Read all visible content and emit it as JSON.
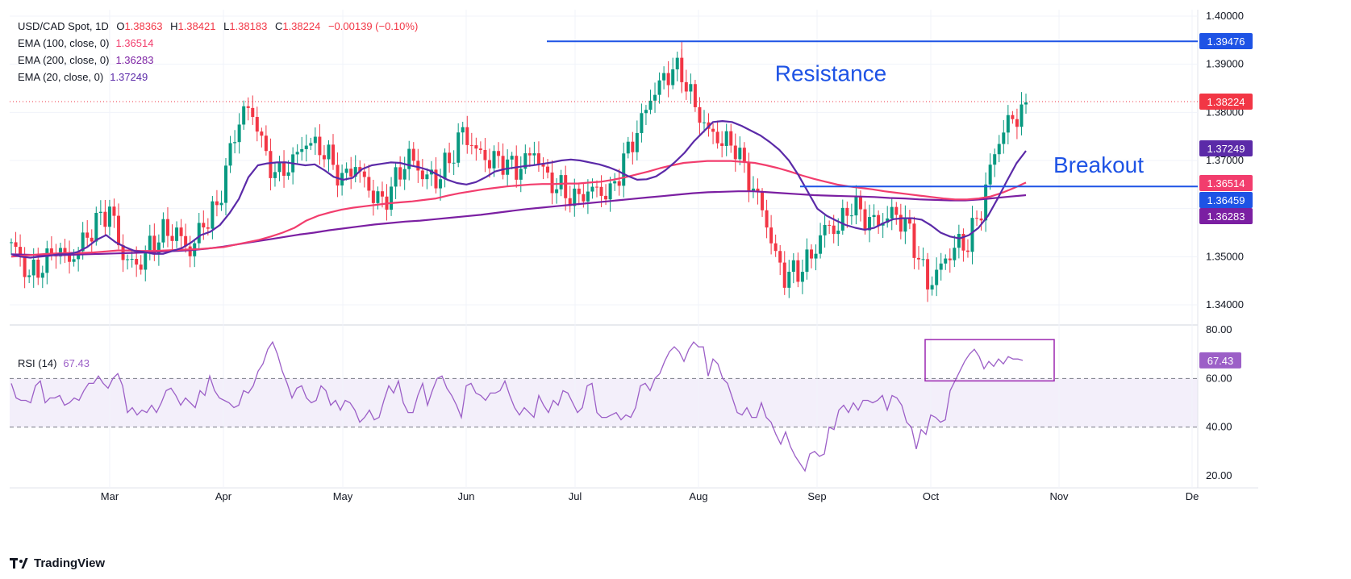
{
  "header": {
    "symbol": "USD/CAD Spot, 1D",
    "open_label": "O",
    "open": "1.38363",
    "high_label": "H",
    "high": "1.38421",
    "low_label": "L",
    "low": "1.38183",
    "close_label": "C",
    "close": "1.38224",
    "change": "−0.00139 (−0.10%)"
  },
  "indicators": [
    {
      "label": "EMA (100, close, 0)",
      "value": "1.36514",
      "color": "#f23d6d"
    },
    {
      "label": "EMA (200, close, 0)",
      "value": "1.36283",
      "color": "#7b1fa2"
    },
    {
      "label": "EMA (20, close, 0)",
      "value": "1.37249",
      "color": "#5b2aa8"
    }
  ],
  "rsi": {
    "label": "RSI (14)",
    "value": "67.43",
    "color": "#9c5fc7"
  },
  "annotations": {
    "resistance": "Resistance",
    "breakout": "Breakout"
  },
  "footer": {
    "brand": "TradingView"
  },
  "colors": {
    "up": "#089981",
    "down": "#f23645",
    "level": "#1e53e5",
    "rsi_band": "#f3effa"
  },
  "chart_data": [
    {
      "type": "candlestick",
      "title": "USD/CAD Spot, 1D",
      "x_ticks": [
        "Mar",
        "Apr",
        "May",
        "Jun",
        "Jul",
        "Aug",
        "Sep",
        "Oct",
        "Nov",
        "De"
      ],
      "y_ticks": [
        "1.40000",
        "1.39000",
        "1.38000",
        "1.37000",
        "1.36000",
        "1.35000",
        "1.34000"
      ],
      "ylim": [
        1.3367,
        1.4002
      ],
      "price_tags": [
        {
          "value": 1.39476,
          "label": "1.39476",
          "color": "#1e53e5"
        },
        {
          "value": 1.38224,
          "label": "1.38224",
          "color": "#f23645"
        },
        {
          "value": 1.37249,
          "label": "1.37249",
          "color": "#5b2aa8"
        },
        {
          "value": 1.36514,
          "label": "1.36514",
          "color": "#f23d6d"
        },
        {
          "value": 1.36459,
          "label": "1.36459",
          "color": "#1e53e5"
        },
        {
          "value": 1.36283,
          "label": "1.36283",
          "color": "#7b1fa2"
        }
      ],
      "levels": [
        {
          "name": "Resistance",
          "value": 1.39476,
          "from_bar": 114
        },
        {
          "name": "Breakout",
          "value": 1.36459,
          "from_bar": 168
        }
      ],
      "ema20": [
        1.3505,
        1.35,
        1.3498,
        1.35,
        1.3502,
        1.3505,
        1.3505,
        1.351,
        1.352,
        1.3535,
        1.3545,
        1.353,
        1.352,
        1.3512,
        1.351,
        1.3506,
        1.3506,
        1.3512,
        1.3518,
        1.353,
        1.3545,
        1.3552,
        1.3566,
        1.359,
        1.362,
        1.3665,
        1.369,
        1.3694,
        1.3696,
        1.3696,
        1.3693,
        1.369,
        1.3692,
        1.368,
        1.3666,
        1.366,
        1.3664,
        1.3682,
        1.369,
        1.3693,
        1.3696,
        1.3695,
        1.369,
        1.3686,
        1.368,
        1.367,
        1.366,
        1.3653,
        1.365,
        1.3655,
        1.3665,
        1.3677,
        1.3682,
        1.3685,
        1.3688,
        1.369,
        1.3693,
        1.3696,
        1.37,
        1.3702,
        1.37,
        1.3696,
        1.3692,
        1.3686,
        1.3678,
        1.3668,
        1.366,
        1.3661,
        1.3667,
        1.368,
        1.3697,
        1.3716,
        1.374,
        1.376,
        1.378,
        1.3782,
        1.378,
        1.3772,
        1.3762,
        1.3752,
        1.3738,
        1.3722,
        1.37,
        1.367,
        1.3635,
        1.36,
        1.3585,
        1.3575,
        1.3566,
        1.356,
        1.3556,
        1.356,
        1.357,
        1.3578,
        1.358,
        1.358,
        1.3577,
        1.3565,
        1.355,
        1.3542,
        1.3538,
        1.3545,
        1.356,
        1.3585,
        1.362,
        1.3658,
        1.3694,
        1.372
      ],
      "ema100": [
        1.35,
        1.3502,
        1.3504,
        1.3506,
        1.3507,
        1.3508,
        1.3508,
        1.3509,
        1.3511,
        1.3513,
        1.3513,
        1.3512,
        1.3512,
        1.3513,
        1.3514,
        1.3515,
        1.3516,
        1.3518,
        1.352,
        1.3525,
        1.353,
        1.3535,
        1.3542,
        1.355,
        1.356,
        1.3575,
        1.3585,
        1.3592,
        1.3598,
        1.3602,
        1.3605,
        1.3608,
        1.3611,
        1.3613,
        1.3615,
        1.3618,
        1.3621,
        1.3627,
        1.3632,
        1.3636,
        1.364,
        1.3643,
        1.3646,
        1.3648,
        1.365,
        1.3651,
        1.3651,
        1.3652,
        1.3652,
        1.3654,
        1.3656,
        1.366,
        1.3665,
        1.3671,
        1.3677,
        1.3684,
        1.369,
        1.3695,
        1.3697,
        1.3699,
        1.3699,
        1.3699,
        1.3697,
        1.3695,
        1.369,
        1.3684,
        1.3677,
        1.3669,
        1.3662,
        1.3656,
        1.365,
        1.3646,
        1.3643,
        1.364,
        1.3636,
        1.3633,
        1.363,
        1.3627,
        1.3624,
        1.3621,
        1.3619,
        1.3619,
        1.3621,
        1.3625,
        1.3633,
        1.3643,
        1.3654
      ],
      "ema200": [
        1.3505,
        1.3504,
        1.3503,
        1.3503,
        1.3504,
        1.3505,
        1.3506,
        1.3507,
        1.3508,
        1.3509,
        1.3511,
        1.3512,
        1.3514,
        1.3517,
        1.3521,
        1.3526,
        1.3531,
        1.3536,
        1.3541,
        1.3546,
        1.355,
        1.3555,
        1.3559,
        1.3563,
        1.3567,
        1.357,
        1.3573,
        1.3575,
        1.3578,
        1.3581,
        1.3584,
        1.3587,
        1.3591,
        1.3595,
        1.3599,
        1.3602,
        1.3605,
        1.3608,
        1.3611,
        1.3614,
        1.3617,
        1.362,
        1.3623,
        1.3626,
        1.3629,
        1.3632,
        1.3634,
        1.3635,
        1.3636,
        1.3636,
        1.3634,
        1.3632,
        1.363,
        1.3628,
        1.3627,
        1.3626,
        1.3625,
        1.3624,
        1.3622,
        1.3621,
        1.3619,
        1.3618,
        1.3617,
        1.3617,
        1.3619,
        1.3622,
        1.3625,
        1.3628
      ]
    },
    {
      "type": "line",
      "title": "RSI (14)",
      "y_ticks": [
        "80.00",
        "60.00",
        "40.00",
        "20.00"
      ],
      "ylim": [
        15,
        82
      ],
      "band": [
        40,
        60
      ],
      "values": [
        58,
        52,
        51,
        51,
        50,
        57,
        59,
        50,
        52,
        52,
        53,
        49,
        50,
        52,
        51,
        55,
        58,
        58,
        61,
        58,
        56,
        60,
        62,
        57,
        46,
        48,
        45,
        47,
        46,
        49,
        46,
        50,
        55,
        56,
        53,
        49,
        52,
        50,
        48,
        55,
        53,
        61,
        55,
        52,
        51,
        50,
        48,
        49,
        55,
        54,
        57,
        63,
        66,
        72,
        75,
        70,
        63,
        58,
        52,
        56,
        57,
        52,
        50,
        51,
        57,
        55,
        49,
        51,
        47,
        51,
        50,
        47,
        42,
        44,
        47,
        43,
        44,
        51,
        57,
        54,
        59,
        50,
        46,
        46,
        53,
        58,
        49,
        55,
        60,
        61,
        56,
        53,
        49,
        44,
        57,
        58,
        54,
        53,
        51,
        54,
        54,
        55,
        59,
        53,
        48,
        45,
        48,
        46,
        44,
        53,
        49,
        46,
        51,
        49,
        55,
        54,
        50,
        46,
        48,
        57,
        58,
        46,
        44,
        44,
        45,
        46,
        43,
        45,
        44,
        48,
        57,
        58,
        55,
        60,
        62,
        67,
        71,
        73,
        71,
        67,
        72,
        75,
        73,
        73,
        61,
        68,
        66,
        60,
        58,
        52,
        46,
        45,
        48,
        44,
        44,
        50,
        44,
        42,
        37,
        33,
        38,
        32,
        28,
        25,
        22,
        29,
        30,
        28,
        29,
        40,
        39,
        47,
        49,
        46,
        50,
        47,
        51,
        51,
        50,
        51,
        53,
        47,
        53,
        52,
        49,
        42,
        40,
        31,
        39,
        37,
        45,
        44,
        42,
        43,
        55,
        59,
        63,
        67,
        70,
        72,
        69,
        64,
        67,
        65,
        68,
        66,
        69,
        68,
        68,
        67.43
      ]
    }
  ]
}
